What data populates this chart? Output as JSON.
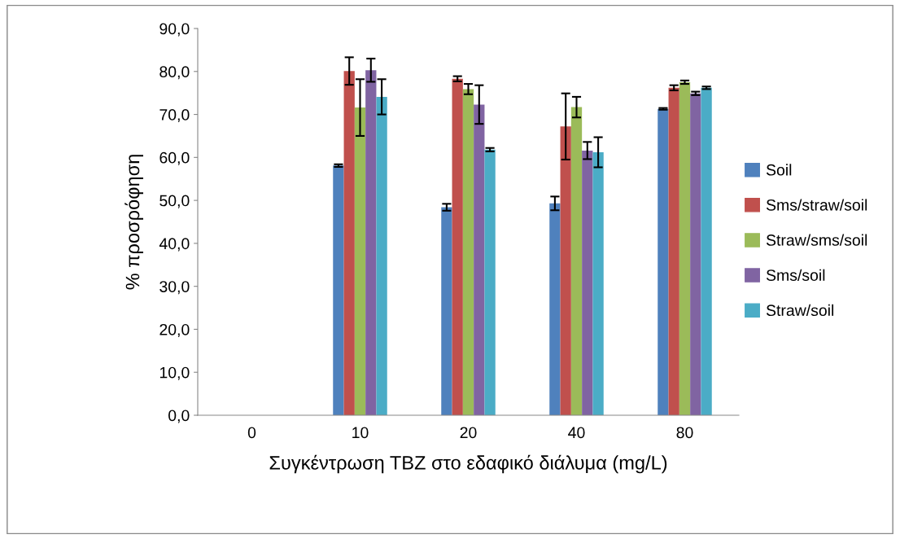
{
  "chart_data": {
    "type": "bar",
    "xlabel": "Συγκέντρωση TBZ στο εδαφικό διάλυμα (mg/L)",
    "ylabel": "% προσρόφηση",
    "categories": [
      "0",
      "10",
      "20",
      "40",
      "80"
    ],
    "ylim": [
      0,
      90
    ],
    "yticks": [
      {
        "value": 0,
        "label": "0,0"
      },
      {
        "value": 10,
        "label": "10,0"
      },
      {
        "value": 20,
        "label": "20,0"
      },
      {
        "value": 30,
        "label": "30,0"
      },
      {
        "value": 40,
        "label": "40,0"
      },
      {
        "value": 50,
        "label": "50,0"
      },
      {
        "value": 60,
        "label": "60,0"
      },
      {
        "value": 70,
        "label": "70,0"
      },
      {
        "value": 80,
        "label": "80,0"
      },
      {
        "value": 90,
        "label": "90,0"
      }
    ],
    "grid": false,
    "legend": "right",
    "series": [
      {
        "name": "Soil",
        "color": "#4f81bd",
        "values": [
          0,
          58.1,
          48.4,
          49.3,
          71.3
        ],
        "errors": [
          null,
          0.3,
          0.8,
          1.6,
          0.2
        ]
      },
      {
        "name": "Sms/straw/soil",
        "color": "#c0504d",
        "values": [
          0,
          80.1,
          78.3,
          67.2,
          76.2
        ],
        "errors": [
          null,
          3.2,
          0.6,
          7.7,
          0.6
        ]
      },
      {
        "name": "Straw/sms/soil",
        "color": "#9bbb59",
        "values": [
          0,
          71.6,
          75.9,
          71.7,
          77.5
        ],
        "errors": [
          null,
          6.6,
          1.2,
          2.4,
          0.4
        ]
      },
      {
        "name": "Sms/soil",
        "color": "#8064a2",
        "values": [
          0,
          80.3,
          72.3,
          61.6,
          74.9
        ],
        "errors": [
          null,
          2.7,
          4.5,
          2.0,
          0.4
        ]
      },
      {
        "name": "Straw/soil",
        "color": "#4bacc6",
        "values": [
          0,
          74.1,
          61.8,
          61.2,
          76.2
        ],
        "errors": [
          null,
          4.1,
          0.4,
          3.5,
          0.3
        ]
      }
    ]
  }
}
